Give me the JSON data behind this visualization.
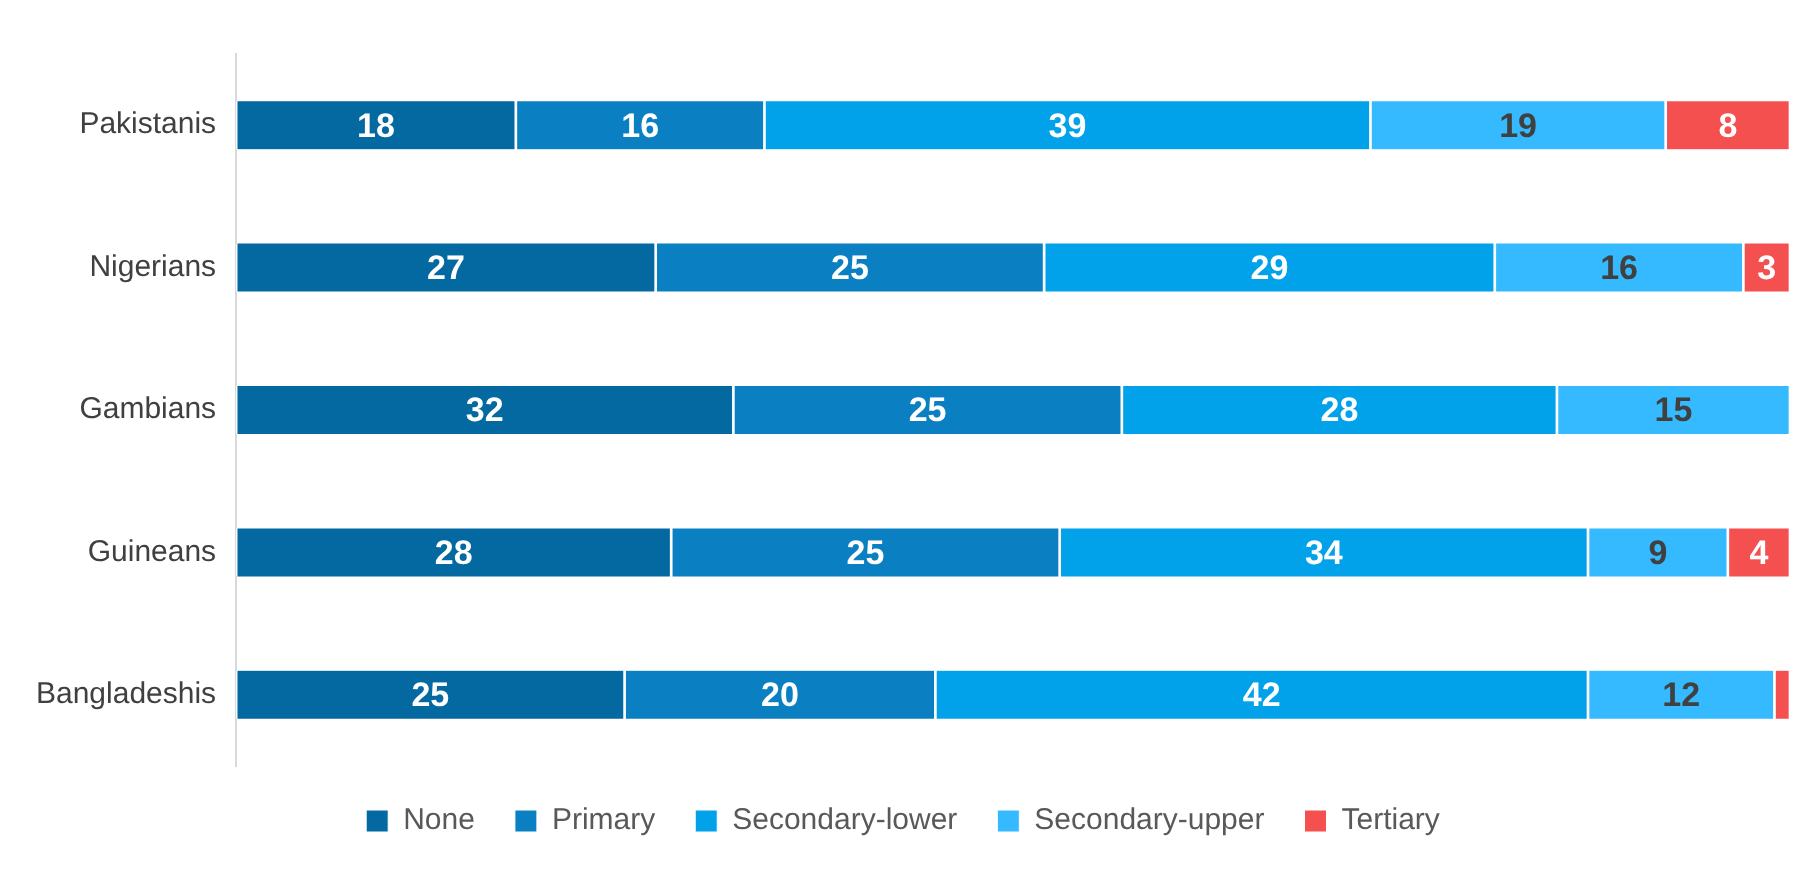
{
  "chart_data": {
    "type": "bar",
    "orientation": "horizontal",
    "stacked": true,
    "legend": "bottom",
    "grid": false,
    "categories": [
      "Pakistanis",
      "Nigerians",
      "Gambians",
      "Guineans",
      "Bangladeshis"
    ],
    "series": [
      {
        "name": "None",
        "color": "#0369a0",
        "values": [
          18,
          27,
          32,
          28,
          25
        ],
        "value_labels": [
          "18",
          "27",
          "32",
          "28",
          "25"
        ]
      },
      {
        "name": "Primary",
        "color": "#0a80c2",
        "values": [
          16,
          25,
          25,
          25,
          20
        ],
        "value_labels": [
          "16",
          "25",
          "25",
          "25",
          "20"
        ]
      },
      {
        "name": "Secondary-lower",
        "color": "#02a2ea",
        "values": [
          39,
          29,
          28,
          34,
          42
        ],
        "value_labels": [
          "39",
          "29",
          "28",
          "34",
          "42"
        ]
      },
      {
        "name": "Secondary-upper",
        "color": "#35baff",
        "values": [
          19,
          16,
          15,
          9,
          12
        ],
        "value_labels": [
          "19",
          "16",
          "15",
          "9",
          "12"
        ]
      },
      {
        "name": "Tertiary",
        "color": "#f55050",
        "values": [
          8,
          3,
          null,
          4,
          1
        ],
        "value_labels": [
          "8",
          "3",
          null,
          "4",
          null
        ]
      }
    ]
  }
}
